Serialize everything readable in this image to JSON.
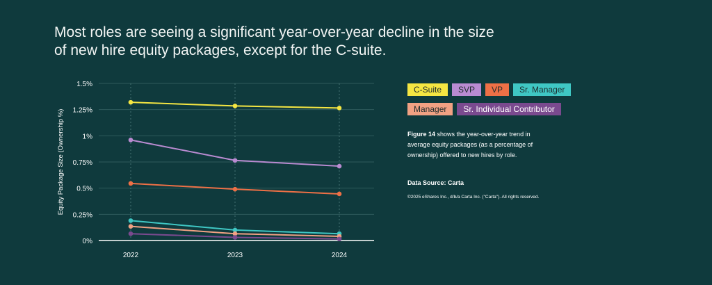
{
  "headline": {
    "line1": "Most roles are seeing a significant year-over-year decline in the size",
    "line2": "of new hire equity packages, except for the C-suite."
  },
  "chart_data": {
    "type": "line",
    "title": "",
    "xlabel": "",
    "ylabel": "Equity Package Size (Ownership %)",
    "x": [
      "2022",
      "2023",
      "2024"
    ],
    "ylim": [
      0,
      1.5
    ],
    "yticks": [
      0,
      0.25,
      0.5,
      0.75,
      1,
      1.25,
      1.5
    ],
    "ytick_labels": [
      "0%",
      "0.25%",
      "0.5%",
      "0.75%",
      "1%",
      "1.25%",
      "1.5%"
    ],
    "series": [
      {
        "name": "C-Suite",
        "color": "#f5e642",
        "values": [
          1.32,
          1.285,
          1.265
        ]
      },
      {
        "name": "SVP",
        "color": "#b98bd1",
        "values": [
          0.96,
          0.765,
          0.71
        ]
      },
      {
        "name": "VP",
        "color": "#ee7046",
        "values": [
          0.545,
          0.49,
          0.445
        ]
      },
      {
        "name": "Sr. Manager",
        "color": "#3fc7c4",
        "values": [
          0.19,
          0.1,
          0.065
        ]
      },
      {
        "name": "Manager",
        "color": "#f1a183",
        "values": [
          0.135,
          0.065,
          0.04
        ]
      },
      {
        "name": "Sr. Individual Contributor",
        "color": "#7a4a8f",
        "values": [
          0.065,
          0.03,
          0.015
        ]
      }
    ],
    "grid": true,
    "legend": "top-right"
  },
  "legend": {
    "row1": [
      {
        "label": "C-Suite",
        "color": "#f5e642"
      },
      {
        "label": "SVP",
        "color": "#b98bd1"
      },
      {
        "label": "VP",
        "color": "#ee7046"
      },
      {
        "label": "Sr. Manager",
        "color": "#3fc7c4"
      }
    ],
    "row2": [
      {
        "label": "Manager",
        "color": "#f1a183"
      },
      {
        "label": "Sr. Individual Contributor",
        "color": "#7a4a8f"
      }
    ]
  },
  "caption": {
    "figure_label": "Figure 14",
    "text": " shows the year-over-year trend in average equity packages (as a percentage of ownership) offered to new hires by role."
  },
  "source": "Data Source: Carta",
  "copyright": "©2025 eShares Inc., d/b/a Carta Inc. (\"Carta\"). All rights reserved."
}
